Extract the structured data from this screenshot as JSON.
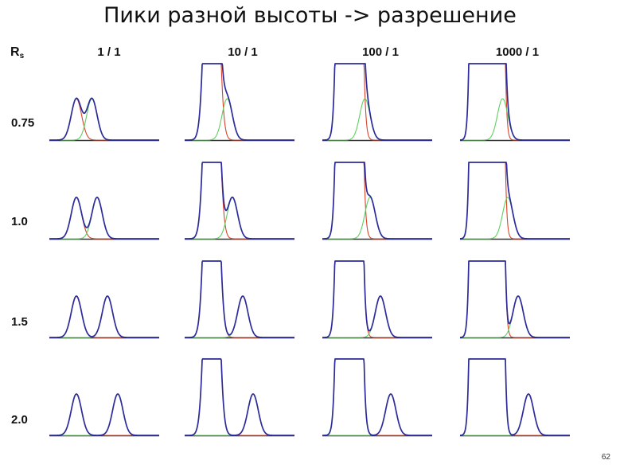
{
  "slide": {
    "title": "Пики разной высоты -> разрешение",
    "page_number": "62"
  },
  "axis": {
    "rs_main": "R",
    "rs_sub": "s"
  },
  "columns": [
    {
      "label": "1 / 1",
      "ratio": 1
    },
    {
      "label": "10 / 1",
      "ratio": 10
    },
    {
      "label": "100 / 1",
      "ratio": 100
    },
    {
      "label": "1000 / 1",
      "ratio": 1000
    }
  ],
  "rows": [
    {
      "label": "0.75",
      "rs": 0.75
    },
    {
      "label": "1.0",
      "rs": 1.0
    },
    {
      "label": "1.5",
      "rs": 1.5
    },
    {
      "label": "2.0",
      "rs": 2.0
    }
  ],
  "colors": {
    "sum_curve": "#2b2b9a",
    "peak_a": "#d9442a",
    "peak_b": "#5fcf5f",
    "baseline": "#333333"
  }
}
